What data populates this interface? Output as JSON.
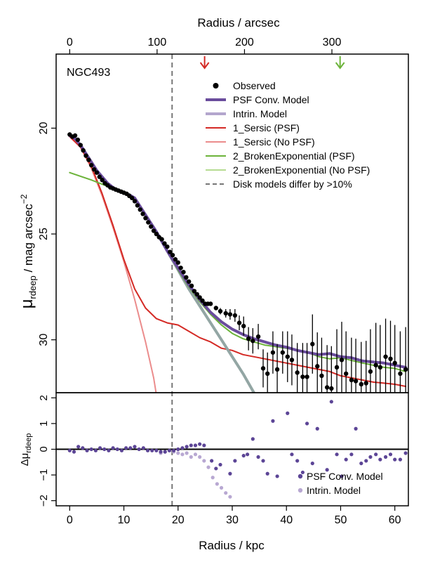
{
  "chart_data": [
    {
      "type": "line",
      "panel": "main",
      "galaxy_label": "NGC493",
      "xlabel": "Radius / kpc",
      "top_xlabel": "Radius / arcsec",
      "ylabel_main": "μ",
      "ylabel_sub": "rdeep",
      "ylabel_rest": " / mag arcsec",
      "ylabel_sup": "−2",
      "xlim": [
        -2.5,
        62.5
      ],
      "ylim": [
        32.5,
        16.5
      ],
      "x_ticks": [
        "0",
        "10",
        "20",
        "30",
        "40",
        "50",
        "60"
      ],
      "y_ticks": [
        "20",
        "25",
        "30"
      ],
      "top_ticks": {
        "labels": [
          "0",
          "100",
          "200",
          "300"
        ],
        "kpc_per_arcsec": 0.1613
      },
      "vline_x": 18.9,
      "arrows": [
        {
          "x": 24.9,
          "color": "#d42a25"
        },
        {
          "x": 49.9,
          "color": "#6cb33a"
        }
      ],
      "colors": {
        "observed": "#000000",
        "psf_model": "#6a4c9c",
        "intrin_model": "#b3a6cd",
        "sersic_psf": "#d42a25",
        "sersic_nopsf": "#eb8c8c",
        "exp_psf": "#6cb33a",
        "exp_nopsf": "#b6dc92",
        "dashed": "#777777",
        "disk_overlap": "#93a6a4"
      },
      "legend": [
        {
          "label": "Observed",
          "kind": "point",
          "color": "#000000"
        },
        {
          "label": "PSF Conv. Model",
          "kind": "line",
          "color": "#6a4c9c",
          "width": 4
        },
        {
          "label": "Intrin. Model",
          "kind": "line",
          "color": "#b3a6cd",
          "width": 4
        },
        {
          "label": "1_Sersic (PSF)",
          "kind": "line",
          "color": "#d42a25",
          "width": 2
        },
        {
          "label": "1_Sersic (No PSF)",
          "kind": "line",
          "color": "#eb8c8c",
          "width": 2
        },
        {
          "label": "2_BrokenExponential (PSF)",
          "kind": "line",
          "color": "#6cb33a",
          "width": 2
        },
        {
          "label": "2_BrokenExponential (No PSF)",
          "kind": "line",
          "color": "#b6dc92",
          "width": 2
        },
        {
          "label": "Disk models differ by >10%",
          "kind": "dash",
          "color": "#777777",
          "width": 2
        }
      ],
      "series": [
        {
          "name": "1_Sersic (No PSF)",
          "color": "#eb8c8c",
          "width": 2,
          "x": [
            0,
            2,
            4,
            6,
            8,
            10,
            12,
            14,
            15.5,
            16
          ],
          "y": [
            20.3,
            20.9,
            21.9,
            23.2,
            24.7,
            26.3,
            28.1,
            30.1,
            31.8,
            32.6
          ]
        },
        {
          "name": "1_Sersic (PSF)",
          "color": "#d42a25",
          "width": 2,
          "x": [
            0,
            2,
            4,
            6,
            8,
            10,
            12,
            14,
            16,
            18,
            20,
            22,
            24,
            26,
            28,
            30,
            32,
            34,
            36,
            40,
            44,
            48,
            50,
            52,
            54,
            56,
            58,
            60,
            62
          ],
          "y": [
            20.4,
            20.9,
            21.8,
            23.1,
            24.6,
            26.2,
            27.6,
            28.5,
            29.0,
            29.2,
            29.3,
            29.6,
            29.9,
            30.1,
            30.4,
            30.5,
            30.7,
            30.8,
            30.9,
            31.1,
            31.3,
            31.5,
            31.7,
            31.8,
            31.9,
            32.0,
            32.05,
            32.1,
            32.2
          ]
        },
        {
          "name": "Disk models overlap",
          "color": "#93a6a4",
          "width": 4,
          "x": [
            12,
            14,
            16,
            18,
            20,
            22,
            24,
            26,
            28,
            30,
            32,
            34
          ],
          "y": [
            23.3,
            24.1,
            24.9,
            25.8,
            26.7,
            27.6,
            28.4,
            29.2,
            30.0,
            30.8,
            31.6,
            32.5
          ]
        },
        {
          "name": "2_BrokenExponential (PSF)",
          "color": "#6cb33a",
          "width": 2,
          "x": [
            0,
            4,
            8,
            11,
            12,
            14,
            16,
            18,
            20,
            22,
            24,
            26,
            28,
            30,
            32,
            34,
            36,
            40,
            44,
            46,
            48,
            50,
            54,
            58,
            60,
            62
          ],
          "y": [
            22.1,
            22.45,
            22.85,
            23.1,
            23.3,
            24.1,
            24.9,
            25.8,
            26.7,
            27.5,
            28.2,
            28.8,
            29.3,
            29.7,
            29.95,
            30.1,
            30.25,
            30.4,
            30.6,
            30.8,
            30.9,
            30.85,
            31.1,
            31.3,
            31.35,
            31.5
          ]
        },
        {
          "name": "PSF Conv. Model",
          "color": "#6a4c9c",
          "width": 4,
          "x": [
            0,
            1,
            2,
            3,
            4,
            5,
            6,
            7,
            8,
            9,
            10,
            11,
            12,
            14,
            16,
            18,
            20,
            22,
            24,
            26,
            28,
            30,
            32,
            34,
            36,
            38,
            40,
            42,
            44,
            46,
            48,
            50,
            52,
            54,
            56,
            58,
            60,
            62
          ],
          "y": [
            20.35,
            20.5,
            20.8,
            21.2,
            21.6,
            22.0,
            22.3,
            22.6,
            22.8,
            22.95,
            23.05,
            23.15,
            23.3,
            24.1,
            24.9,
            25.8,
            26.6,
            27.4,
            28.1,
            28.7,
            29.15,
            29.5,
            29.75,
            29.95,
            30.1,
            30.25,
            30.35,
            30.5,
            30.6,
            30.7,
            30.65,
            30.8,
            30.85,
            31.0,
            31.05,
            31.1,
            31.2,
            31.3
          ]
        }
      ],
      "observed": {
        "x": [
          0,
          0.5,
          1,
          1.5,
          2,
          2.5,
          3,
          3.5,
          4,
          4.5,
          5,
          5.5,
          6,
          6.5,
          7,
          7.5,
          8,
          8.5,
          9,
          9.5,
          10,
          10.5,
          11,
          11.5,
          12,
          12.5,
          13,
          13.5,
          14,
          14.5,
          15,
          15.5,
          16,
          16.5,
          17,
          17.5,
          18,
          18.5,
          19,
          19.5,
          20,
          20.5,
          21,
          21.5,
          22,
          22.5,
          23,
          23.5,
          24,
          24.5,
          25,
          25.5,
          26,
          27.0,
          27.8,
          28.8,
          29.6,
          30.5,
          31.3,
          32.1,
          33.0,
          33.8,
          34.8,
          35.7,
          36.5,
          37.5,
          38.3,
          39.3,
          40.2,
          41.0,
          42.0,
          43.0,
          43.8,
          44.8,
          45.7,
          46.5,
          47.5,
          48.3,
          49.3,
          50.2,
          51.0,
          52.0,
          52.8,
          53.8,
          54.7,
          55.5,
          56.5,
          57.3,
          58.3,
          59.2,
          60.0,
          61.0,
          62.0
        ],
        "y": [
          20.3,
          20.4,
          20.35,
          20.55,
          20.8,
          21.05,
          21.3,
          21.5,
          21.75,
          21.95,
          22.1,
          22.3,
          22.45,
          22.6,
          22.7,
          22.8,
          22.85,
          22.9,
          22.95,
          23.0,
          23.05,
          23.1,
          23.2,
          23.3,
          23.45,
          23.65,
          23.85,
          24.05,
          24.25,
          24.45,
          24.65,
          24.85,
          25.0,
          25.15,
          25.25,
          25.45,
          25.6,
          25.85,
          26.0,
          26.2,
          26.35,
          26.6,
          26.8,
          27.05,
          27.25,
          27.45,
          27.7,
          27.85,
          28.0,
          28.15,
          28.3,
          28.3,
          28.3,
          28.5,
          28.65,
          28.75,
          28.8,
          28.85,
          29.2,
          29.35,
          29.95,
          30.05,
          29.85,
          31.35,
          31.6,
          30.6,
          31.4,
          30.6,
          30.8,
          30.95,
          31.55,
          31.75,
          31.75,
          30.2,
          31.25,
          31.7,
          32.25,
          32.3,
          31.3,
          30.95,
          31.6,
          31.9,
          31.95,
          32.1,
          32.05,
          31.5,
          31.2,
          31.3,
          30.8,
          30.9,
          31.1,
          31.6,
          31.4
        ],
        "err": [
          0.05,
          0.05,
          0.05,
          0.05,
          0.05,
          0.05,
          0.05,
          0.05,
          0.05,
          0.05,
          0.05,
          0.05,
          0.05,
          0.05,
          0.05,
          0.05,
          0.05,
          0.05,
          0.05,
          0.05,
          0.05,
          0.05,
          0.05,
          0.05,
          0.05,
          0.05,
          0.05,
          0.05,
          0.05,
          0.05,
          0.05,
          0.05,
          0.05,
          0.05,
          0.05,
          0.05,
          0.05,
          0.05,
          0.05,
          0.05,
          0.05,
          0.05,
          0.05,
          0.05,
          0.05,
          0.05,
          0.05,
          0.05,
          0.05,
          0.05,
          0.05,
          0.05,
          0.05,
          0.1,
          0.15,
          0.2,
          0.25,
          0.3,
          0.35,
          0.45,
          0.55,
          0.6,
          0.6,
          0.9,
          1.0,
          1.0,
          1.2,
          1.0,
          1.2,
          1.2,
          1.4,
          1.6,
          1.6,
          1.4,
          1.6,
          1.8,
          2.0,
          2.0,
          1.8,
          1.8,
          2.0,
          2.0,
          2.0,
          2.0,
          2.0,
          2.0,
          2.0,
          2.0,
          1.8,
          1.8,
          1.8,
          2.0,
          2.0
        ]
      }
    },
    {
      "type": "scatter",
      "panel": "residuals",
      "ylabel_main": "Δμ",
      "ylabel_sub": "rdeep",
      "xlim": [
        -2.5,
        62.5
      ],
      "ylim": [
        -2.2,
        2.2
      ],
      "y_ticks": [
        "−2",
        "−1",
        "0",
        "1",
        "2"
      ],
      "series": [
        {
          "name": "PSF Conv. Model",
          "color": "#5c4596",
          "x": [
            0,
            0.8,
            1.6,
            2.4,
            3.2,
            4.0,
            4.8,
            5.6,
            6.4,
            7.2,
            8.0,
            8.8,
            9.6,
            10.4,
            11.2,
            12.0,
            12.8,
            13.6,
            14.4,
            15.2,
            16.0,
            16.8,
            17.6,
            18.4,
            19.2,
            20.0,
            20.8,
            21.6,
            22.4,
            23.2,
            24.0,
            24.8,
            26.2,
            27.0,
            27.8,
            29.6,
            30.5,
            32.1,
            32.8,
            33.8,
            34.8,
            35.7,
            36.5,
            37.5,
            38.3,
            40.2,
            41.0,
            42.0,
            43.0,
            43.8,
            44.8,
            45.7,
            47.5,
            48.3,
            49.3,
            50.2,
            51.0,
            52.0,
            52.8,
            53.8,
            54.7,
            55.5,
            56.5,
            57.3,
            58.3,
            59.2,
            60.0,
            61.0,
            62.0
          ],
          "y": [
            -0.05,
            -0.1,
            0.1,
            0.05,
            -0.05,
            0.0,
            -0.05,
            0.05,
            0.0,
            -0.05,
            0.05,
            0.0,
            -0.05,
            0.05,
            0.05,
            0.1,
            0.0,
            0.05,
            -0.05,
            -0.05,
            -0.05,
            -0.1,
            -0.1,
            -0.05,
            -0.05,
            0.0,
            0.05,
            0.1,
            0.15,
            0.15,
            0.2,
            0.15,
            -0.45,
            -0.75,
            -0.6,
            -0.95,
            -0.45,
            -0.25,
            -0.2,
            0.4,
            -0.3,
            -0.45,
            -0.95,
            1.1,
            -1.05,
            1.4,
            -0.2,
            -0.45,
            -0.9,
            1.0,
            -0.55,
            0.8,
            -0.8,
            1.85,
            -0.2,
            -1.05,
            -0.4,
            -0.2,
            0.8,
            -0.55,
            -0.45,
            -0.3,
            -0.2,
            -0.4,
            -0.3,
            -0.2,
            -0.4,
            -0.4,
            -0.15
          ]
        },
        {
          "name": "Intrin. Model",
          "color": "#b8a8d2",
          "x": [
            16.8,
            17.6,
            18.4,
            19.2,
            20.0,
            20.8,
            21.6,
            22.4,
            23.2,
            24.0,
            24.8,
            25.6,
            26.4,
            27.2,
            28.0,
            28.8,
            29.6
          ],
          "y": [
            -0.15,
            -0.1,
            -0.05,
            -0.1,
            -0.15,
            -0.2,
            -0.15,
            -0.3,
            -0.2,
            -0.3,
            -0.45,
            -0.7,
            -1.1,
            -1.35,
            -1.5,
            -1.7,
            -1.85
          ]
        }
      ],
      "legend": [
        {
          "label": "PSF Conv. Model",
          "color": "#5c4596"
        },
        {
          "label": "Intrin. Model",
          "color": "#b8a8d2"
        }
      ]
    }
  ]
}
